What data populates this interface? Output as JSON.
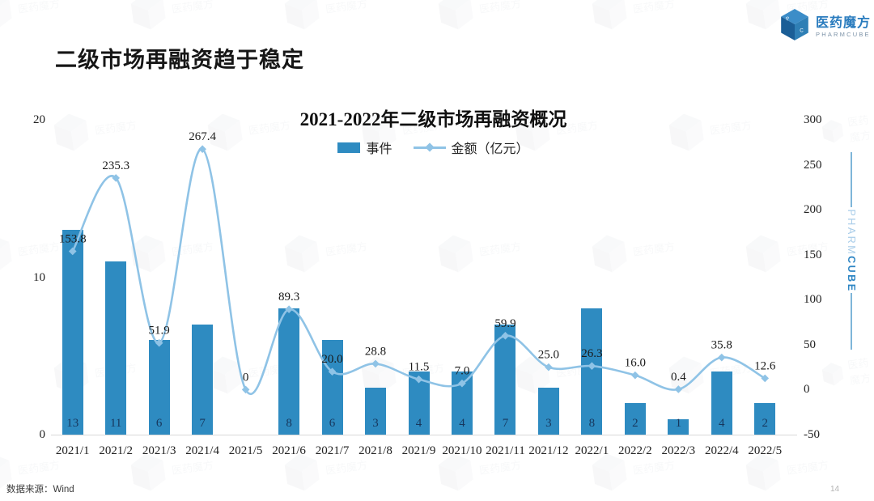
{
  "page": {
    "title": "二级市场再融资趋于稳定",
    "source_label": "数据来源：Wind",
    "page_number": "14"
  },
  "logo": {
    "name_cn": "医药魔方",
    "name_en": "PHARMCUBE",
    "icon": "cube-icon"
  },
  "side_badge": {
    "pharm": "PHARM",
    "cube": "CUBE"
  },
  "icons": {
    "watermark": "cube-outline-icon",
    "watermark_text": "医药魔方"
  },
  "chart_data": {
    "type": "bar",
    "subtype": "bar+line combo, dual axis",
    "title": "2021-2022年二级市场再融资概况",
    "categories": [
      "2021/1",
      "2021/2",
      "2021/3",
      "2021/4",
      "2021/5",
      "2021/6",
      "2021/7",
      "2021/8",
      "2021/9",
      "2021/10",
      "2021/11",
      "2021/12",
      "2022/1",
      "2022/2",
      "2022/3",
      "2022/4",
      "2022/5"
    ],
    "series": [
      {
        "name": "事件",
        "type": "bar",
        "axis": "left",
        "values": [
          13,
          11,
          6,
          7,
          null,
          8,
          6,
          3,
          4,
          4,
          7,
          3,
          8,
          2,
          1,
          4,
          2
        ]
      },
      {
        "name": "金额（亿元）",
        "type": "line",
        "axis": "right",
        "values": [
          153.8,
          235.3,
          51.9,
          267.4,
          0,
          89.3,
          20.0,
          28.8,
          11.5,
          7.0,
          59.9,
          25.0,
          26.3,
          16.0,
          0.4,
          35.8,
          12.6
        ],
        "labels": [
          "153.8",
          "235.3",
          "51.9",
          "267.4",
          "0",
          "89.3",
          "20.0",
          "28.8",
          "11.5",
          "7.0",
          "59.9",
          "25.0",
          "26.3",
          "16.0",
          "0.4",
          "35.8",
          "12.6"
        ]
      }
    ],
    "left_axis": {
      "range": [
        0,
        20
      ],
      "ticks": [
        20,
        10,
        0
      ]
    },
    "right_axis": {
      "range": [
        -50,
        300
      ],
      "ticks": [
        300,
        250,
        200,
        150,
        100,
        50,
        0,
        -50
      ]
    },
    "grid": "off",
    "legend_position": "top-center",
    "colors": {
      "bar": "#2E8BC1",
      "line": "#8FC3E6",
      "bar_label": "#17375D",
      "value_label": "#1a1a1a",
      "axis_line": "#d9d9d9"
    }
  }
}
